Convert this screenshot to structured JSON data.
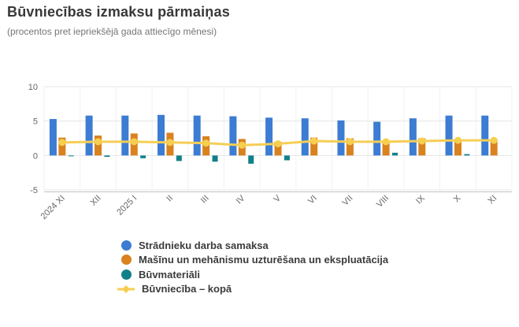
{
  "header": {
    "title": "Būvniecības izmaksu pārmaiņas",
    "subtitle": "(procentos pret iepriekšējā gada attiecīgo mēnesi)"
  },
  "chart_data": {
    "type": "bar",
    "subtype": "grouped bars with line overlay",
    "title": "Būvniecības izmaksu pārmaiņas",
    "subtitle": "(procentos pret iepriekšējā gada attiecīgo mēnesi)",
    "categories": [
      "2024 XI",
      "XII",
      "2025 I",
      "II",
      "III",
      "IV",
      "V",
      "VI",
      "VII",
      "VIII",
      "IX",
      "X",
      "XI"
    ],
    "series": [
      {
        "name": "Strādnieku darba samaksa",
        "type": "bar",
        "color": "#3C7CD2",
        "values": [
          5.3,
          5.8,
          5.8,
          5.9,
          5.8,
          5.7,
          5.5,
          5.4,
          5.1,
          4.9,
          5.4,
          5.8,
          5.8
        ]
      },
      {
        "name": "Mašīnu un mehānismu uzturēšana un ekspluatācija",
        "type": "bar",
        "color": "#D9821F",
        "values": [
          2.6,
          2.9,
          3.2,
          3.3,
          2.8,
          2.4,
          2.0,
          2.6,
          2.5,
          2.0,
          2.5,
          2.2,
          2.4
        ]
      },
      {
        "name": "Būvmateriāli",
        "type": "bar",
        "color": "#12808A",
        "values": [
          -0.1,
          -0.2,
          -0.4,
          -0.8,
          -0.9,
          -1.2,
          -0.7,
          0,
          0,
          0.4,
          0,
          0.2,
          0
        ]
      },
      {
        "name": "Būvniecība – kopā",
        "type": "line",
        "color": "#F5CE55",
        "marker_color": "#F6CF4E",
        "values": [
          1.9,
          2.0,
          2.0,
          1.9,
          1.8,
          1.5,
          1.7,
          2.1,
          2.0,
          2.0,
          2.1,
          2.2,
          2.2
        ]
      }
    ],
    "xlabel": "",
    "ylabel": "",
    "ylim": [
      -5,
      10
    ],
    "yticks": [
      10,
      5,
      0,
      -5
    ],
    "grid": true,
    "legend_position": "bottom-left"
  }
}
